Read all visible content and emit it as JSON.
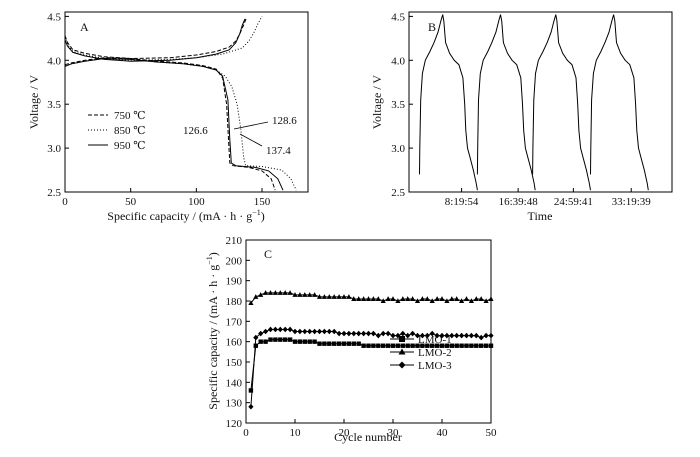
{
  "chart_data": [
    {
      "panel_label": "A",
      "type": "line",
      "xlabel": "Specific capacity / (mA · h · g",
      "xlabel_sup": "−1",
      "xlabel_end": ")",
      "ylabel": "Voltage / V",
      "xlim": [
        0,
        185
      ],
      "ylim": [
        2.5,
        4.55
      ],
      "xticks": [
        "0",
        "50",
        "100",
        "150"
      ],
      "yticks": [
        "2.5",
        "3.0",
        "3.5",
        "4.0",
        "4.5"
      ],
      "legend_position": "center-left",
      "series": [
        {
          "name": "750 ℃",
          "style": "dashed",
          "charge": [
            [
              0,
              4.28
            ],
            [
              2,
              4.2
            ],
            [
              6,
              4.12
            ],
            [
              15,
              4.08
            ],
            [
              30,
              4.04
            ],
            [
              50,
              4.02
            ],
            [
              80,
              4.03
            ],
            [
              100,
              4.06
            ],
            [
              115,
              4.1
            ],
            [
              125,
              4.15
            ],
            [
              130,
              4.22
            ],
            [
              133,
              4.3
            ],
            [
              136,
              4.4
            ],
            [
              138,
              4.48
            ]
          ],
          "discharge": [
            [
              0,
              3.95
            ],
            [
              5,
              3.97
            ],
            [
              15,
              4.0
            ],
            [
              30,
              4.03
            ],
            [
              50,
              4.02
            ],
            [
              70,
              3.99
            ],
            [
              90,
              3.97
            ],
            [
              105,
              3.94
            ],
            [
              115,
              3.9
            ],
            [
              120,
              3.8
            ],
            [
              123,
              3.5
            ],
            [
              124.5,
              3.1
            ],
            [
              125.5,
              2.83
            ],
            [
              128,
              2.8
            ],
            [
              140,
              2.78
            ],
            [
              150,
              2.74
            ],
            [
              157,
              2.65
            ],
            [
              160,
              2.52
            ]
          ]
        },
        {
          "name": "850 ℃",
          "style": "dotted",
          "charge": [
            [
              0,
              4.26
            ],
            [
              2,
              4.18
            ],
            [
              6,
              4.1
            ],
            [
              15,
              4.06
            ],
            [
              30,
              4.02
            ],
            [
              50,
              4.0
            ],
            [
              80,
              4.01
            ],
            [
              100,
              4.03
            ],
            [
              120,
              4.07
            ],
            [
              135,
              4.14
            ],
            [
              140,
              4.22
            ],
            [
              144,
              4.32
            ],
            [
              147,
              4.42
            ],
            [
              150,
              4.5
            ]
          ],
          "discharge": [
            [
              0,
              3.94
            ],
            [
              5,
              3.96
            ],
            [
              15,
              3.99
            ],
            [
              30,
              4.02
            ],
            [
              50,
              4.01
            ],
            [
              70,
              3.98
            ],
            [
              90,
              3.96
            ],
            [
              105,
              3.93
            ],
            [
              115,
              3.89
            ],
            [
              122,
              3.82
            ],
            [
              127,
              3.7
            ],
            [
              131,
              3.5
            ],
            [
              134,
              3.2
            ],
            [
              136,
              2.9
            ],
            [
              137.5,
              2.8
            ],
            [
              150,
              2.79
            ],
            [
              165,
              2.75
            ],
            [
              172,
              2.65
            ],
            [
              176,
              2.52
            ]
          ]
        },
        {
          "name": "950 ℃",
          "style": "solid",
          "charge": [
            [
              0,
              4.23
            ],
            [
              2,
              4.16
            ],
            [
              6,
              4.09
            ],
            [
              15,
              4.05
            ],
            [
              30,
              4.01
            ],
            [
              50,
              3.99
            ],
            [
              80,
              4.0
            ],
            [
              100,
              4.03
            ],
            [
              115,
              4.07
            ],
            [
              125,
              4.12
            ],
            [
              130,
              4.2
            ],
            [
              133,
              4.3
            ],
            [
              135,
              4.4
            ],
            [
              137,
              4.47
            ]
          ],
          "discharge": [
            [
              0,
              3.93
            ],
            [
              5,
              3.96
            ],
            [
              15,
              3.99
            ],
            [
              30,
              4.02
            ],
            [
              50,
              4.01
            ],
            [
              70,
              3.98
            ],
            [
              90,
              3.96
            ],
            [
              105,
              3.93
            ],
            [
              115,
              3.89
            ],
            [
              120,
              3.82
            ],
            [
              124,
              3.55
            ],
            [
              125.5,
              3.1
            ],
            [
              126.6,
              2.83
            ],
            [
              130,
              2.8
            ],
            [
              145,
              2.78
            ],
            [
              155,
              2.74
            ],
            [
              162,
              2.65
            ],
            [
              166,
              2.52
            ]
          ]
        }
      ],
      "annotations": [
        "126.6",
        "128.6",
        "137.4"
      ]
    },
    {
      "panel_label": "B",
      "type": "line",
      "xlabel": "Time",
      "ylabel": "Voltage / V",
      "xlim": [
        0,
        1
      ],
      "ylim": [
        2.5,
        4.55
      ],
      "xticks": [
        "8:19:54",
        "16:39:48",
        "24:59:41",
        "33:19:39"
      ],
      "yticks": [
        "2.5",
        "3.0",
        "3.5",
        "4.0",
        "4.5"
      ],
      "series": [
        {
          "name": "",
          "cycles": 4,
          "cycle_start_x": [
            0.04,
            0.26,
            0.47,
            0.69
          ],
          "cycle_width": 0.22,
          "profile": [
            [
              0,
              2.7
            ],
            [
              0.005,
              3.0
            ],
            [
              0.02,
              3.55
            ],
            [
              0.05,
              3.85
            ],
            [
              0.1,
              4.0
            ],
            [
              0.18,
              4.1
            ],
            [
              0.25,
              4.2
            ],
            [
              0.32,
              4.32
            ],
            [
              0.37,
              4.45
            ],
            [
              0.4,
              4.52
            ],
            [
              0.42,
              4.45
            ],
            [
              0.45,
              4.2
            ],
            [
              0.52,
              4.08
            ],
            [
              0.6,
              4.0
            ],
            [
              0.68,
              3.95
            ],
            [
              0.75,
              3.8
            ],
            [
              0.78,
              3.5
            ],
            [
              0.8,
              3.2
            ],
            [
              0.83,
              3.0
            ],
            [
              0.87,
              2.9
            ],
            [
              0.93,
              2.75
            ],
            [
              0.98,
              2.6
            ],
            [
              1,
              2.52
            ]
          ]
        }
      ]
    },
    {
      "panel_label": "C",
      "type": "line",
      "xlabel": "Cycle number",
      "ylabel": "Specific capacity / (mA · h · g",
      "ylabel_sup": "−1",
      "ylabel_end": ")",
      "xlim": [
        0,
        50
      ],
      "ylim": [
        120,
        210
      ],
      "xticks": [
        "0",
        "10",
        "20",
        "30",
        "40",
        "50"
      ],
      "yticks": [
        "120",
        "130",
        "140",
        "150",
        "160",
        "170",
        "180",
        "190",
        "200",
        "210"
      ],
      "legend_position": "center-right",
      "series": [
        {
          "name": "LMO-1",
          "marker": "square",
          "values": [
            136,
            158,
            160,
            160,
            161,
            161,
            161,
            161,
            161,
            160,
            160,
            160,
            160,
            160,
            159,
            159,
            159,
            159,
            159,
            159,
            159,
            159,
            159,
            158,
            158,
            158,
            158,
            158,
            158,
            158,
            158,
            158,
            158,
            158,
            158,
            158,
            158,
            158,
            158,
            158,
            158,
            158,
            158,
            158,
            158,
            158,
            158,
            158,
            158,
            158
          ]
        },
        {
          "name": "LMO-2",
          "marker": "triangle",
          "values": [
            179,
            182,
            183,
            184,
            184,
            184,
            184,
            184,
            184,
            183,
            183,
            183,
            183,
            183,
            182,
            182,
            182,
            182,
            182,
            182,
            182,
            181,
            181,
            181,
            181,
            181,
            181,
            180,
            181,
            181,
            180,
            181,
            181,
            181,
            180,
            181,
            181,
            180,
            181,
            181,
            180,
            181,
            181,
            180,
            181,
            180,
            181,
            181,
            180,
            181
          ]
        },
        {
          "name": "LMO-3",
          "marker": "diamond",
          "values": [
            128,
            162,
            164,
            165,
            166,
            166,
            166,
            166,
            166,
            165,
            165,
            165,
            165,
            165,
            165,
            165,
            165,
            165,
            164,
            164,
            164,
            164,
            164,
            164,
            164,
            164,
            163,
            164,
            164,
            163,
            163,
            164,
            163,
            164,
            163,
            163,
            163,
            164,
            163,
            163,
            163,
            163,
            163,
            163,
            163,
            163,
            163,
            162,
            163,
            163
          ]
        }
      ]
    }
  ]
}
